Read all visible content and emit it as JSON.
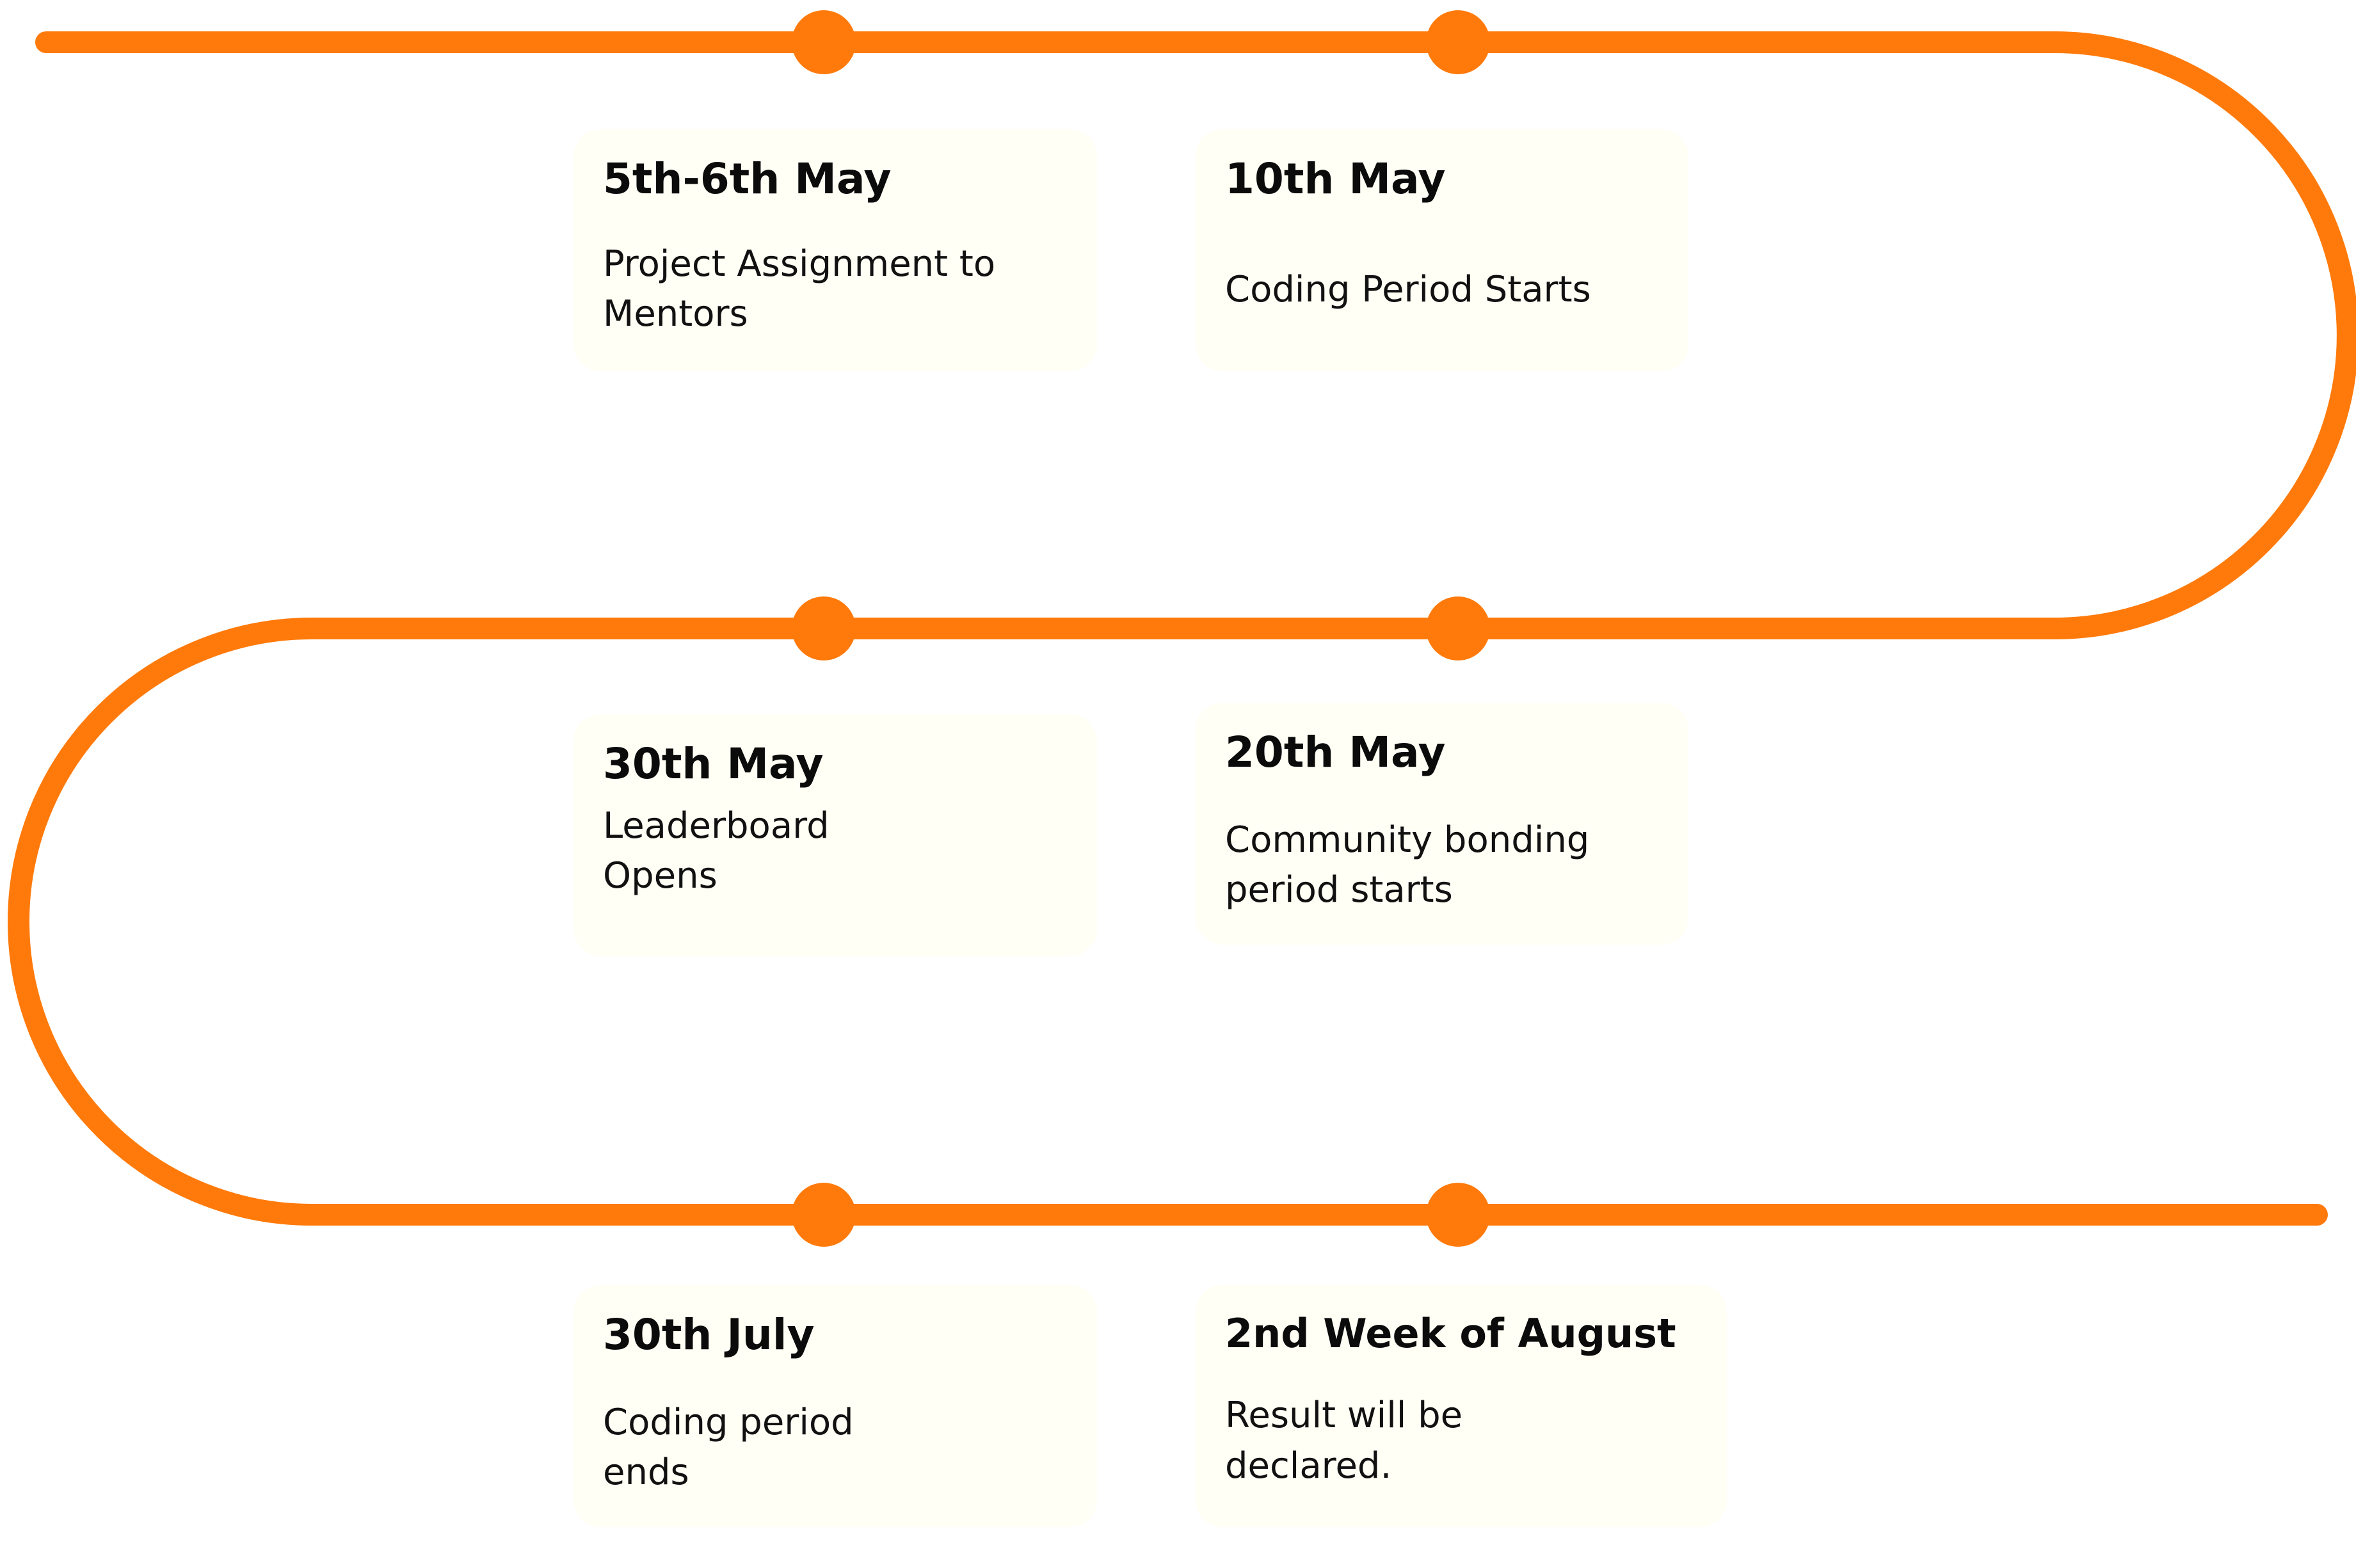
{
  "colors": {
    "path": "#FF7A0A",
    "card_background": "#FFFFF5",
    "text": "#0B0B0B"
  },
  "milestones": [
    {
      "date": "5th-6th May",
      "description": "Project Assignment to\nMentors"
    },
    {
      "date": "10th May",
      "description": "Coding Period Starts"
    },
    {
      "date": "30th May",
      "description": "Leaderboard\nOpens"
    },
    {
      "date": "20th May",
      "description": "Community bonding\nperiod starts"
    },
    {
      "date": "30th July",
      "description": "Coding period\nends"
    },
    {
      "date": "2nd Week of August",
      "description": "Result will be\ndeclared."
    }
  ]
}
